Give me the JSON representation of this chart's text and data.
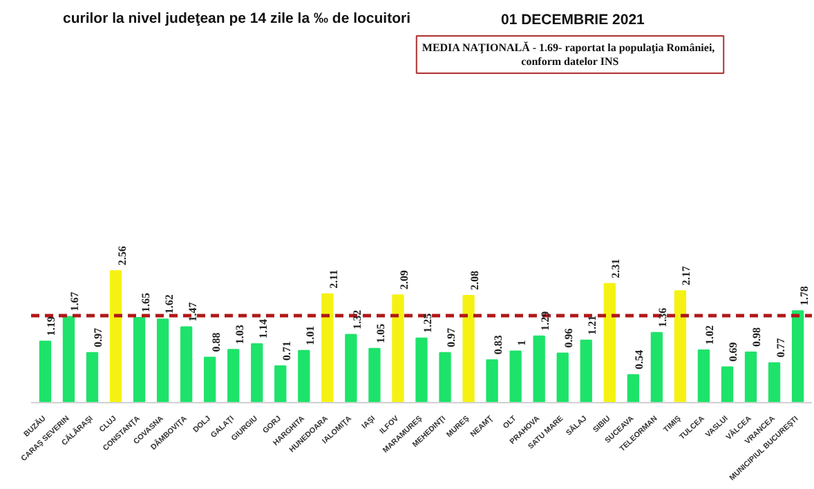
{
  "chart_data": {
    "type": "bar",
    "title": "curilor la nivel judeţean pe 14 zile la ‰ de locuitori",
    "subtitle": "01 DECEMBRIE 2021",
    "categories": [
      "BUZĂU",
      "CARAŞ SEVERIN",
      "CĂLĂRAŞI",
      "CLUJ",
      "CONSTANŢA",
      "COVASNA",
      "DÂMBOVIŢA",
      "DOLJ",
      "GALAŢI",
      "GIURGIU",
      "GORJ",
      "HARGHITA",
      "HUNEDOARA",
      "IALOMIŢA",
      "IAŞI",
      "ILFOV",
      "MARAMUREŞ",
      "MEHEDINŢI",
      "MUREŞ",
      "NEAMŢ",
      "OLT",
      "PRAHOVA",
      "SATU MARE",
      "SĂLAJ",
      "SIBIU",
      "SUCEAVA",
      "TELEORMAN",
      "TIMIŞ",
      "TULCEA",
      "VASLUI",
      "VÂLCEA",
      "VRANCEA",
      "MUNICIPIUL BUCUREŞTI"
    ],
    "values": [
      1.19,
      1.67,
      0.97,
      2.56,
      1.65,
      1.62,
      1.47,
      0.88,
      1.03,
      1.14,
      0.71,
      1.01,
      2.11,
      1.32,
      1.05,
      2.09,
      1.25,
      0.97,
      2.08,
      0.83,
      1,
      1.29,
      0.96,
      1.21,
      2.31,
      0.54,
      1.36,
      2.17,
      1.02,
      0.69,
      0.98,
      0.77,
      1.78
    ],
    "colors": [
      "#1ee36a",
      "#1ee36a",
      "#1ee36a",
      "#f5f213",
      "#1ee36a",
      "#1ee36a",
      "#1ee36a",
      "#1ee36a",
      "#1ee36a",
      "#1ee36a",
      "#1ee36a",
      "#1ee36a",
      "#f5f213",
      "#1ee36a",
      "#1ee36a",
      "#f5f213",
      "#1ee36a",
      "#1ee36a",
      "#f5f213",
      "#1ee36a",
      "#1ee36a",
      "#1ee36a",
      "#1ee36a",
      "#1ee36a",
      "#f5f213",
      "#1ee36a",
      "#1ee36a",
      "#f5f213",
      "#1ee36a",
      "#1ee36a",
      "#1ee36a",
      "#1ee36a",
      "#1ee36a"
    ],
    "data_labels": true,
    "annotations": [
      "MEDIA NAŢIONALĂ - 1.69-  raportat la populaţia României, conform datelor INS"
    ],
    "ref_lines": [
      {
        "axis": "y",
        "value": 1.69,
        "color": "#b01818",
        "line_style": "dashed"
      }
    ]
  }
}
